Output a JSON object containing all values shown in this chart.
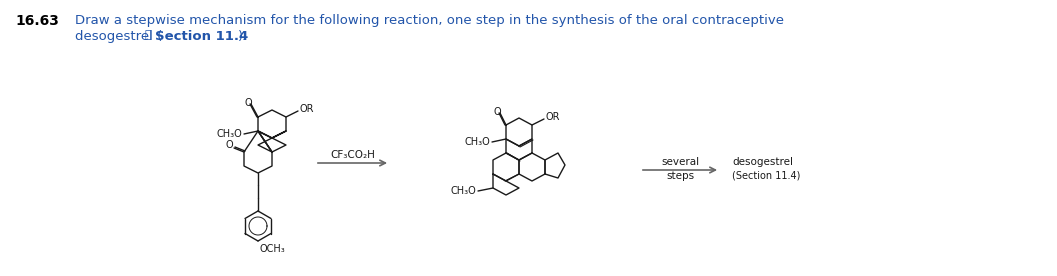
{
  "title_number": "16.63",
  "title_line1": "Draw a stepwise mechanism for the following reaction, one step in the synthesis of the oral contraceptive",
  "title_line2_a": "desogestrel (",
  "title_line2_b": " Section 11.4",
  "title_line2_c": ").",
  "reagent": "CF₃CO₂H",
  "arrow2_l1": "several",
  "arrow2_l2": "steps",
  "prod_l1": "desogestrel",
  "prod_l2": "(Section 11.4)",
  "bg": "#ffffff",
  "black": "#1a1a1a",
  "blue": "#2255aa",
  "gray": "#666666"
}
